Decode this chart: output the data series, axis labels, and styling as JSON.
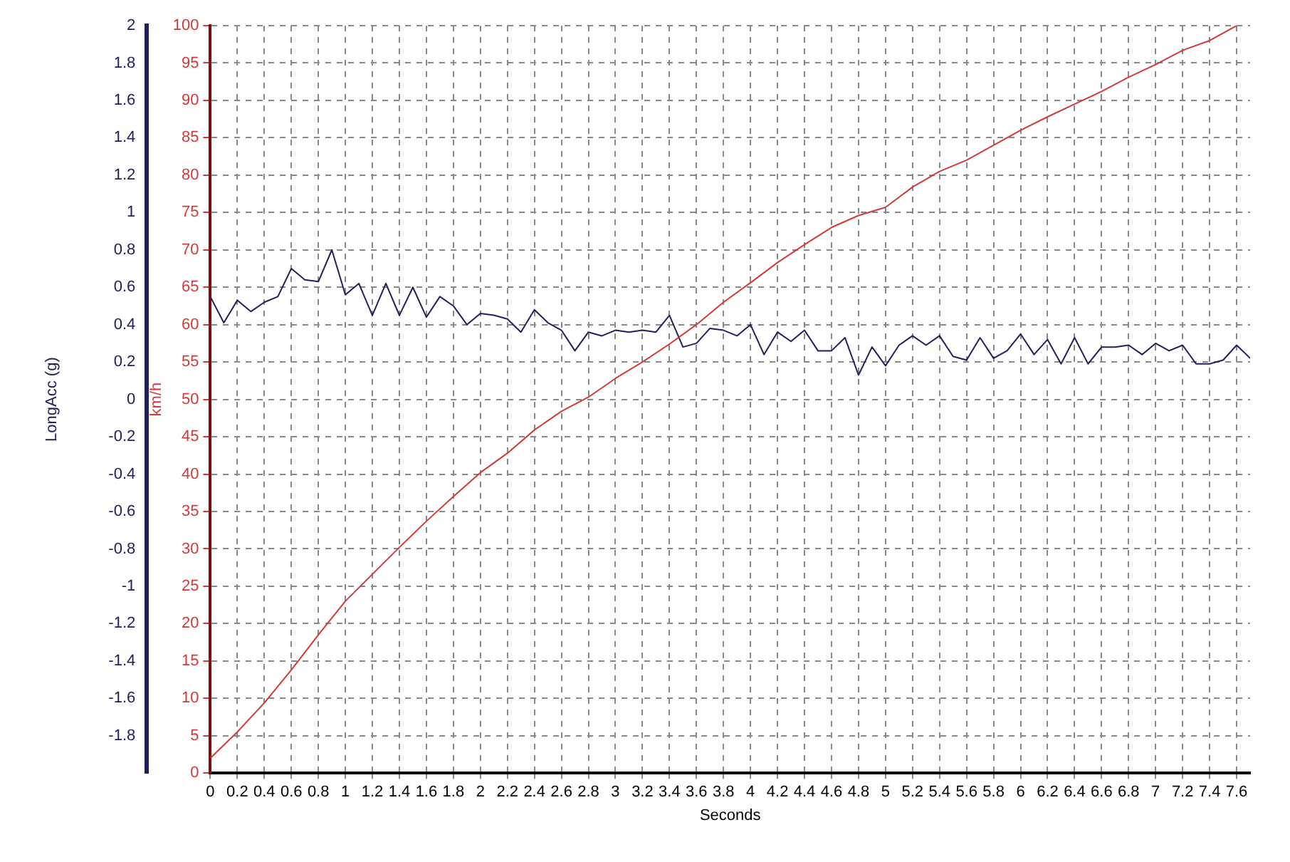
{
  "chart_data": {
    "type": "line",
    "xlabel": "Seconds",
    "ylabel": "km/h",
    "y2label": "LongAcc (g)",
    "xlim": [
      0,
      7.7
    ],
    "xticks": [
      0,
      0.2,
      0.4,
      0.6,
      0.8,
      1,
      1.2,
      1.4,
      1.6,
      1.8,
      2,
      2.2,
      2.4,
      2.6,
      2.8,
      3,
      3.2,
      3.4,
      3.6,
      3.8,
      4,
      4.2,
      4.4,
      4.6,
      4.8,
      5,
      5.2,
      5.4,
      5.6,
      5.8,
      6,
      6.2,
      6.4,
      6.6,
      6.8,
      7,
      7.2,
      7.4,
      7.6
    ],
    "ylim": [
      0,
      100
    ],
    "yticks": [
      0,
      5,
      10,
      15,
      20,
      25,
      30,
      35,
      40,
      45,
      50,
      55,
      60,
      65,
      70,
      75,
      80,
      85,
      90,
      95,
      100
    ],
    "y2lim": [
      -2,
      2
    ],
    "y2ticks": [
      -1.8,
      -1.6,
      -1.4,
      -1.2,
      -1,
      -0.8,
      -0.6,
      -0.4,
      -0.2,
      0,
      0.2,
      0.4,
      0.6,
      0.8,
      1,
      1.2,
      1.4,
      1.6,
      1.8,
      2
    ],
    "grid": true,
    "marker": "none",
    "series": [
      {
        "color": "#d03a3a",
        "x": [
          0,
          0.2,
          0.4,
          0.6,
          0.8,
          1,
          1.2,
          1.4,
          1.6,
          1.8,
          2,
          2.2,
          2.4,
          2.6,
          2.8,
          3,
          3.2,
          3.4,
          3.6,
          3.8,
          4,
          4.2,
          4.4,
          4.6,
          4.8,
          5,
          5.2,
          5.4,
          5.6,
          5.8,
          6,
          6.2,
          6.4,
          6.6,
          6.8,
          7,
          7.2,
          7.4,
          7.6
        ],
        "values": [
          2,
          5.5,
          9.4,
          13.8,
          18.5,
          23,
          26.6,
          30.2,
          33.7,
          37,
          40.2,
          42.8,
          45.9,
          48.4,
          50.3,
          52.8,
          55,
          57.4,
          60,
          63,
          65.6,
          68.3,
          70.7,
          73,
          74.6,
          75.7,
          78.4,
          80.5,
          82,
          84,
          86,
          87.8,
          89.5,
          91.2,
          93.1,
          94.8,
          96.7,
          98,
          100
        ]
      },
      {
        "color": "#20205a",
        "axis": "y2",
        "x": [
          0,
          0.1,
          0.2,
          0.3,
          0.4,
          0.5,
          0.6,
          0.7,
          0.8,
          0.9,
          1,
          1.1,
          1.2,
          1.3,
          1.4,
          1.5,
          1.6,
          1.7,
          1.8,
          1.9,
          2,
          2.1,
          2.2,
          2.3,
          2.4,
          2.5,
          2.6,
          2.7,
          2.8,
          2.9,
          3,
          3.1,
          3.2,
          3.3,
          3.4,
          3.5,
          3.6,
          3.7,
          3.8,
          3.9,
          4,
          4.1,
          4.2,
          4.3,
          4.4,
          4.5,
          4.6,
          4.7,
          4.8,
          4.9,
          5,
          5.1,
          5.2,
          5.3,
          5.4,
          5.5,
          5.6,
          5.7,
          5.8,
          5.9,
          6,
          6.1,
          6.2,
          6.3,
          6.4,
          6.5,
          6.6,
          6.7,
          6.8,
          6.9,
          7,
          7.1,
          7.2,
          7.3,
          7.4,
          7.5,
          7.6,
          7.7
        ],
        "values": [
          0.55,
          0.41,
          0.53,
          0.47,
          0.52,
          0.55,
          0.7,
          0.64,
          0.63,
          0.8,
          0.56,
          0.62,
          0.45,
          0.62,
          0.45,
          0.6,
          0.44,
          0.55,
          0.5,
          0.4,
          0.46,
          0.45,
          0.43,
          0.36,
          0.48,
          0.41,
          0.37,
          0.26,
          0.36,
          0.34,
          0.37,
          0.36,
          0.37,
          0.36,
          0.45,
          0.28,
          0.3,
          0.38,
          0.37,
          0.34,
          0.4,
          0.24,
          0.36,
          0.31,
          0.37,
          0.26,
          0.26,
          0.33,
          0.13,
          0.28,
          0.18,
          0.29,
          0.34,
          0.29,
          0.34,
          0.23,
          0.21,
          0.33,
          0.22,
          0.26,
          0.35,
          0.24,
          0.32,
          0.19,
          0.33,
          0.19,
          0.28,
          0.28,
          0.29,
          0.24,
          0.3,
          0.26,
          0.29,
          0.19,
          0.19,
          0.21,
          0.29,
          0.22
        ]
      }
    ]
  }
}
